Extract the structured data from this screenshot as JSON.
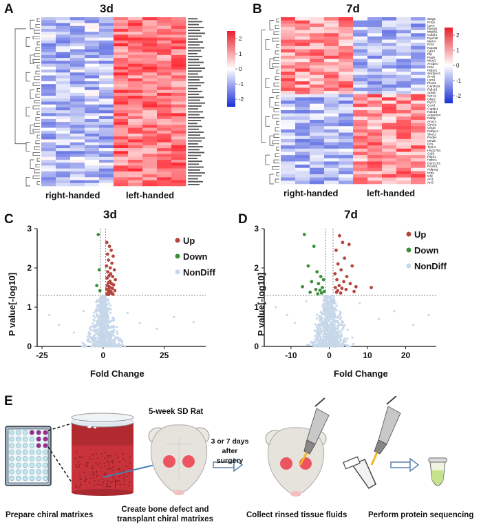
{
  "panels": {
    "A": {
      "letter": "A",
      "title": "3d",
      "group_right": "right-handed",
      "group_left": "left-handed"
    },
    "B": {
      "letter": "B",
      "title": "7d",
      "group_right": "right-handed",
      "group_left": "left-handed"
    },
    "C": {
      "letter": "C",
      "title": "3d",
      "xlabel": "Fold Change",
      "ylabel": "P value[-log10]"
    },
    "D": {
      "letter": "D",
      "title": "7d",
      "xlabel": "Fold Change",
      "ylabel": "P value[-log10]"
    },
    "E": {
      "letter": "E"
    }
  },
  "legend": {
    "up": "Up",
    "down": "Down",
    "nondiff": "NonDiff"
  },
  "colors": {
    "up": "#b5453f",
    "down": "#3a8f3a",
    "nondiff": "#c7d7ea",
    "heat_high": "#e8202a",
    "heat_low": "#1a2fd6"
  },
  "chart_data": [
    {
      "type": "heatmap",
      "panel": "A",
      "title": "3d",
      "xlabel": "",
      "ylabel": "",
      "groups": [
        "right-handed",
        "left-handed"
      ],
      "colorbar": {
        "ticks": [
          "2",
          "1",
          "0",
          "-1",
          "-2"
        ],
        "range": [
          -2.5,
          2.5
        ]
      },
      "rows": 58,
      "columns": 10
    },
    {
      "type": "heatmap",
      "panel": "B",
      "title": "7d",
      "groups": [
        "right-handed",
        "left-handed"
      ],
      "colorbar": {
        "ticks": [
          "2",
          "1",
          "0",
          "-1",
          "-2"
        ],
        "range": [
          -2.5,
          2.5
        ]
      },
      "rows": 52,
      "columns": 10,
      "row_labels": [
        "Mag1",
        "Krig1",
        "Lpxn",
        "Rps26",
        "Mrpl51",
        "Coblr1",
        "Piprl18",
        "Myh4",
        "Pcnt",
        "Nup35",
        "Gpx7",
        "Plp",
        "Pygb",
        "Mon3",
        "Andpro",
        "Pelo",
        "Ndpe1",
        "Serpinc1",
        "Srrs2",
        "Lsm1",
        "Plod3",
        "Camk2a",
        "Rdh10",
        "Adam",
        "Sar1a",
        "Gbp2",
        "Pyrc1",
        "Cox3",
        "Caplp1",
        "Rab14",
        "Adamts4",
        "Ralbp",
        "Anxr1",
        "Gm2a",
        "Chga",
        "Pabpc1",
        "Skor1",
        "Pedec",
        "Itm2b",
        "Dcs",
        "Tpm1",
        "Hsd17b4",
        "Col8",
        "Rbpl1",
        "Hpbc1",
        "Dync1h1",
        "Pcols1",
        "Adipoq",
        "Irrbs",
        "Cfd",
        "Art1",
        "Art3"
      ]
    },
    {
      "type": "scatter",
      "panel": "C",
      "title": "3d",
      "xlabel": "Fold Change",
      "ylabel": "P value[-log10]",
      "xlim": [
        -27,
        42
      ],
      "ylim": [
        0,
        3
      ],
      "xticks": [
        "-25",
        "0",
        "25"
      ],
      "yticks": [
        "0",
        "1",
        "2",
        "3"
      ],
      "thresholds": {
        "x": [
          -1,
          1
        ],
        "y": 1.3
      },
      "series": [
        {
          "name": "Up",
          "points": [
            [
              1.5,
              2.65
            ],
            [
              2.6,
              2.55
            ],
            [
              3.3,
              2.45
            ],
            [
              1.8,
              2.35
            ],
            [
              4.1,
              2.3
            ],
            [
              2.2,
              2.2
            ],
            [
              3.6,
              2.12
            ],
            [
              1.4,
              2.05
            ],
            [
              2.9,
              2.0
            ],
            [
              4.6,
              1.95
            ],
            [
              1.9,
              1.9
            ],
            [
              3.1,
              1.85
            ],
            [
              2.4,
              1.8
            ],
            [
              3.9,
              1.78
            ],
            [
              1.6,
              1.74
            ],
            [
              5.0,
              1.7
            ],
            [
              2.8,
              1.66
            ],
            [
              2.1,
              1.62
            ],
            [
              3.4,
              1.6
            ],
            [
              4.3,
              1.57
            ],
            [
              1.7,
              1.55
            ],
            [
              2.5,
              1.52
            ],
            [
              3.0,
              1.5
            ],
            [
              3.8,
              1.48
            ],
            [
              1.45,
              1.46
            ],
            [
              2.3,
              1.44
            ],
            [
              4.8,
              1.42
            ],
            [
              3.2,
              1.4
            ],
            [
              2.0,
              1.38
            ],
            [
              2.7,
              1.36
            ],
            [
              3.6,
              1.35
            ],
            [
              1.55,
              1.33
            ],
            [
              4.0,
              1.33
            ],
            [
              2.2,
              1.32
            ]
          ]
        },
        {
          "name": "Down",
          "points": [
            [
              -2.0,
              2.85
            ],
            [
              -1.6,
              1.95
            ],
            [
              -2.6,
              1.55
            ],
            [
              -1.3,
              1.42
            ]
          ]
        }
      ]
    },
    {
      "type": "scatter",
      "panel": "D",
      "title": "7d",
      "xlabel": "Fold Change",
      "ylabel": "P value[-log10]",
      "xlim": [
        -17,
        28
      ],
      "ylim": [
        0,
        3
      ],
      "xticks": [
        "-10",
        "0",
        "10",
        "20"
      ],
      "yticks": [
        "0",
        "1",
        "2",
        "3"
      ],
      "thresholds": {
        "x": [
          -1,
          1
        ],
        "y": 1.3
      },
      "series": [
        {
          "name": "Up",
          "points": [
            [
              2.7,
              2.82
            ],
            [
              3.5,
              2.65
            ],
            [
              5.2,
              2.6
            ],
            [
              1.8,
              2.45
            ],
            [
              4.0,
              2.25
            ],
            [
              2.3,
              2.1
            ],
            [
              6.0,
              2.05
            ],
            [
              3.1,
              1.95
            ],
            [
              1.5,
              1.85
            ],
            [
              4.6,
              1.78
            ],
            [
              2.0,
              1.7
            ],
            [
              3.8,
              1.65
            ],
            [
              5.5,
              1.6
            ],
            [
              2.6,
              1.55
            ],
            [
              7.0,
              1.52
            ],
            [
              1.6,
              1.5
            ],
            [
              3.3,
              1.48
            ],
            [
              11.0,
              1.5
            ],
            [
              4.4,
              1.45
            ],
            [
              2.2,
              1.42
            ],
            [
              6.5,
              1.4
            ],
            [
              1.9,
              1.38
            ],
            [
              3.0,
              1.36
            ]
          ]
        },
        {
          "name": "Down",
          "points": [
            [
              -6.5,
              2.85
            ],
            [
              -4.0,
              2.55
            ],
            [
              -5.5,
              2.05
            ],
            [
              -3.2,
              1.9
            ],
            [
              -2.2,
              1.78
            ],
            [
              -1.5,
              1.7
            ],
            [
              -4.6,
              1.65
            ],
            [
              -2.8,
              1.6
            ],
            [
              -7.0,
              1.52
            ],
            [
              -1.8,
              1.5
            ],
            [
              -3.5,
              1.45
            ],
            [
              -2.4,
              1.43
            ],
            [
              -1.3,
              1.4
            ],
            [
              -5.0,
              1.38
            ],
            [
              -2.0,
              1.36
            ],
            [
              -3.0,
              1.34
            ]
          ]
        }
      ]
    }
  ],
  "workflow": {
    "rat_title": "5-week SD Rat",
    "time_label_line1": "3 or 7 days",
    "time_label_line2": "after surgery",
    "step1": "Prepare chiral matrixes",
    "step2_line1": "Create bone defect and",
    "step2_line2": "transplant chiral matrixes",
    "step3": "Collect rinsed tissue fluids",
    "step4": "Perform protein sequencing"
  }
}
